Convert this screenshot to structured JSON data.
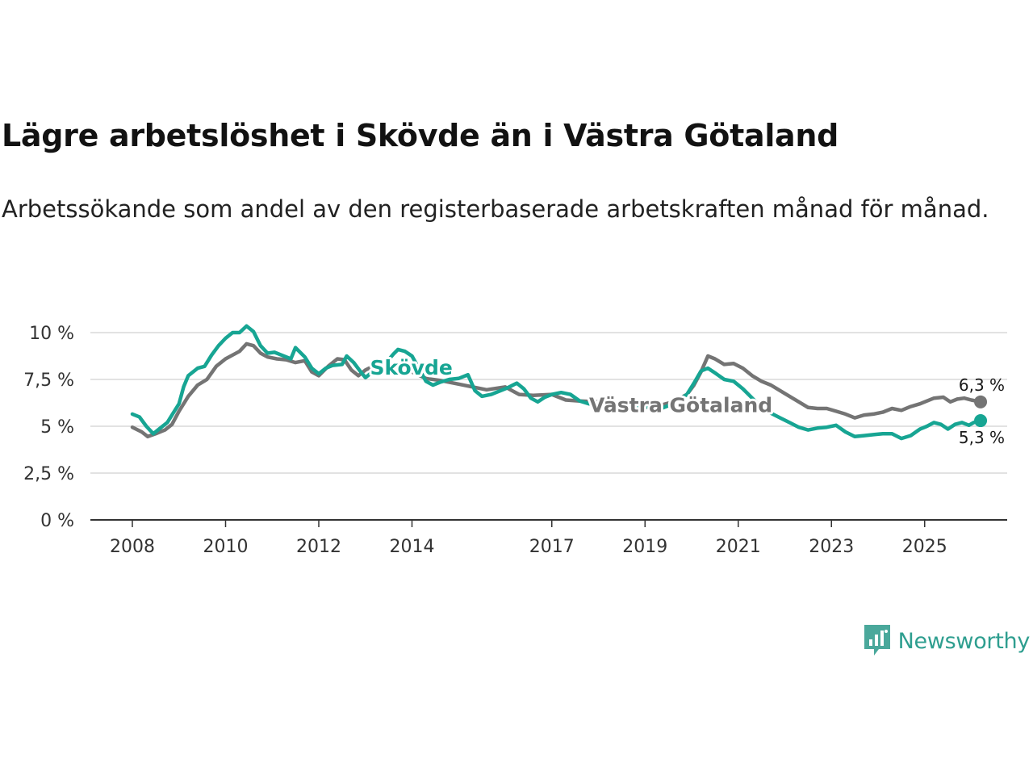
{
  "title": "Lägre arbetslöshet i Skövde än i Västra Götaland",
  "subtitle": "Arbetssökande som andel av den registerbaserade arbetskraften månad för månad.",
  "brand": {
    "name": "Newsworthy",
    "icon": "newsworthy-logo-icon",
    "color": "#2e9e8f"
  },
  "chart_data": {
    "type": "line",
    "title": "Lägre arbetslöshet i Skövde än i Västra Götaland",
    "ylim": [
      0,
      10
    ],
    "xlim": [
      2007.8,
      2026.5
    ],
    "grid": true,
    "y_ticks": [
      {
        "value": 0,
        "label": "0 %"
      },
      {
        "value": 2.5,
        "label": "2,5 %"
      },
      {
        "value": 5,
        "label": "5 %"
      },
      {
        "value": 7.5,
        "label": "7,5 %"
      },
      {
        "value": 10,
        "label": "10 %"
      }
    ],
    "x_ticks": [
      {
        "value": 2008,
        "label": "2008"
      },
      {
        "value": 2010,
        "label": "2010"
      },
      {
        "value": 2012,
        "label": "2012"
      },
      {
        "value": 2014,
        "label": "2014"
      },
      {
        "value": 2017,
        "label": "2017"
      },
      {
        "value": 2019,
        "label": "2019"
      },
      {
        "value": 2021,
        "label": "2021"
      },
      {
        "value": 2023,
        "label": "2023"
      },
      {
        "value": 2025,
        "label": "2025"
      }
    ],
    "series": [
      {
        "name": "Västra Götaland",
        "color": "#747474",
        "end_label": "6,3 %",
        "end_value": 6.3,
        "label_at": [
          2017.8,
          6.15
        ],
        "points": [
          [
            2008,
            4.95
          ],
          [
            2008.2,
            4.7
          ],
          [
            2008.33,
            4.45
          ],
          [
            2008.5,
            4.6
          ],
          [
            2008.7,
            4.8
          ],
          [
            2008.85,
            5.1
          ],
          [
            2009.0,
            5.8
          ],
          [
            2009.2,
            6.6
          ],
          [
            2009.4,
            7.2
          ],
          [
            2009.6,
            7.5
          ],
          [
            2009.8,
            8.2
          ],
          [
            2010.0,
            8.6
          ],
          [
            2010.15,
            8.8
          ],
          [
            2010.3,
            9.0
          ],
          [
            2010.45,
            9.4
          ],
          [
            2010.6,
            9.3
          ],
          [
            2010.75,
            8.9
          ],
          [
            2010.9,
            8.7
          ],
          [
            2011.1,
            8.6
          ],
          [
            2011.3,
            8.55
          ],
          [
            2011.5,
            8.4
          ],
          [
            2011.7,
            8.5
          ],
          [
            2011.85,
            7.9
          ],
          [
            2012.0,
            7.7
          ],
          [
            2012.2,
            8.2
          ],
          [
            2012.4,
            8.6
          ],
          [
            2012.55,
            8.55
          ],
          [
            2012.7,
            8.0
          ],
          [
            2012.85,
            7.7
          ],
          [
            2013.0,
            8.0
          ],
          [
            2013.2,
            8.25
          ],
          [
            2013.4,
            8.45
          ],
          [
            2013.6,
            8.2
          ],
          [
            2014.0,
            7.9
          ],
          [
            2014.3,
            7.55
          ],
          [
            2014.6,
            7.45
          ],
          [
            2015.0,
            7.25
          ],
          [
            2015.3,
            7.1
          ],
          [
            2015.6,
            6.95
          ],
          [
            2016.0,
            7.1
          ],
          [
            2016.3,
            6.7
          ],
          [
            2016.6,
            6.65
          ],
          [
            2017.0,
            6.7
          ],
          [
            2017.3,
            6.4
          ],
          [
            2017.6,
            6.35
          ],
          [
            2018.0,
            6.3
          ],
          [
            2018.3,
            6.2
          ],
          [
            2018.6,
            6.1
          ],
          [
            2019.0,
            6.0
          ],
          [
            2019.3,
            6.1
          ],
          [
            2019.6,
            6.3
          ],
          [
            2019.9,
            6.7
          ],
          [
            2020.05,
            7.2
          ],
          [
            2020.2,
            7.9
          ],
          [
            2020.35,
            8.75
          ],
          [
            2020.5,
            8.6
          ],
          [
            2020.7,
            8.3
          ],
          [
            2020.9,
            8.35
          ],
          [
            2021.1,
            8.1
          ],
          [
            2021.3,
            7.7
          ],
          [
            2021.5,
            7.4
          ],
          [
            2021.7,
            7.2
          ],
          [
            2021.9,
            6.9
          ],
          [
            2022.1,
            6.6
          ],
          [
            2022.3,
            6.3
          ],
          [
            2022.5,
            6.0
          ],
          [
            2022.7,
            5.95
          ],
          [
            2022.9,
            5.95
          ],
          [
            2023.1,
            5.8
          ],
          [
            2023.3,
            5.65
          ],
          [
            2023.5,
            5.45
          ],
          [
            2023.7,
            5.6
          ],
          [
            2023.9,
            5.65
          ],
          [
            2024.1,
            5.75
          ],
          [
            2024.3,
            5.95
          ],
          [
            2024.5,
            5.85
          ],
          [
            2024.7,
            6.05
          ],
          [
            2024.9,
            6.2
          ],
          [
            2025.0,
            6.3
          ],
          [
            2025.2,
            6.5
          ],
          [
            2025.4,
            6.55
          ],
          [
            2025.55,
            6.3
          ],
          [
            2025.7,
            6.45
          ],
          [
            2025.85,
            6.5
          ],
          [
            2026.0,
            6.4
          ],
          [
            2026.2,
            6.3
          ]
        ]
      },
      {
        "name": "Skövde",
        "color": "#17a593",
        "end_label": "5,3 %",
        "end_value": 5.3,
        "label_at": [
          2013.1,
          8.15
        ],
        "points": [
          [
            2008,
            5.65
          ],
          [
            2008.15,
            5.5
          ],
          [
            2008.3,
            5.0
          ],
          [
            2008.45,
            4.6
          ],
          [
            2008.6,
            4.9
          ],
          [
            2008.75,
            5.2
          ],
          [
            2008.85,
            5.6
          ],
          [
            2009.0,
            6.2
          ],
          [
            2009.1,
            7.1
          ],
          [
            2009.2,
            7.7
          ],
          [
            2009.4,
            8.1
          ],
          [
            2009.55,
            8.2
          ],
          [
            2009.7,
            8.8
          ],
          [
            2009.85,
            9.3
          ],
          [
            2010.0,
            9.7
          ],
          [
            2010.15,
            10.0
          ],
          [
            2010.3,
            10.0
          ],
          [
            2010.45,
            10.35
          ],
          [
            2010.6,
            10.05
          ],
          [
            2010.75,
            9.3
          ],
          [
            2010.9,
            8.9
          ],
          [
            2011.05,
            8.95
          ],
          [
            2011.2,
            8.8
          ],
          [
            2011.4,
            8.6
          ],
          [
            2011.5,
            9.2
          ],
          [
            2011.7,
            8.7
          ],
          [
            2011.85,
            8.1
          ],
          [
            2012.0,
            7.8
          ],
          [
            2012.15,
            8.1
          ],
          [
            2012.3,
            8.25
          ],
          [
            2012.5,
            8.3
          ],
          [
            2012.6,
            8.75
          ],
          [
            2012.75,
            8.4
          ],
          [
            2012.9,
            7.9
          ],
          [
            2013.0,
            7.6
          ],
          [
            2013.2,
            8.0
          ],
          [
            2013.35,
            8.35
          ],
          [
            2013.5,
            8.55
          ],
          [
            2013.6,
            8.85
          ],
          [
            2013.7,
            9.1
          ],
          [
            2013.85,
            9.0
          ],
          [
            2014.0,
            8.75
          ],
          [
            2014.3,
            7.4
          ],
          [
            2014.45,
            7.2
          ],
          [
            2014.6,
            7.35
          ],
          [
            2014.8,
            7.5
          ],
          [
            2015.0,
            7.55
          ],
          [
            2015.2,
            7.75
          ],
          [
            2015.35,
            6.9
          ],
          [
            2015.5,
            6.6
          ],
          [
            2015.7,
            6.7
          ],
          [
            2015.9,
            6.9
          ],
          [
            2016.05,
            7.05
          ],
          [
            2016.25,
            7.3
          ],
          [
            2016.4,
            7.0
          ],
          [
            2016.55,
            6.5
          ],
          [
            2016.7,
            6.3
          ],
          [
            2016.85,
            6.55
          ],
          [
            2017.0,
            6.7
          ],
          [
            2017.2,
            6.8
          ],
          [
            2017.4,
            6.7
          ],
          [
            2017.6,
            6.35
          ],
          [
            2017.8,
            6.2
          ],
          [
            2018.0,
            6.2
          ],
          [
            2018.3,
            6.1
          ],
          [
            2018.6,
            6.05
          ],
          [
            2018.9,
            6.1
          ],
          [
            2019.1,
            6.0
          ],
          [
            2019.3,
            5.9
          ],
          [
            2019.5,
            6.1
          ],
          [
            2019.7,
            6.35
          ],
          [
            2019.9,
            6.7
          ],
          [
            2020.05,
            7.3
          ],
          [
            2020.2,
            7.95
          ],
          [
            2020.35,
            8.1
          ],
          [
            2020.5,
            7.85
          ],
          [
            2020.7,
            7.5
          ],
          [
            2020.9,
            7.4
          ],
          [
            2021.1,
            7.0
          ],
          [
            2021.3,
            6.5
          ],
          [
            2021.5,
            6.0
          ],
          [
            2021.7,
            5.7
          ],
          [
            2021.9,
            5.45
          ],
          [
            2022.1,
            5.2
          ],
          [
            2022.3,
            4.95
          ],
          [
            2022.5,
            4.8
          ],
          [
            2022.7,
            4.9
          ],
          [
            2022.9,
            4.95
          ],
          [
            2023.1,
            5.05
          ],
          [
            2023.3,
            4.7
          ],
          [
            2023.5,
            4.45
          ],
          [
            2023.7,
            4.5
          ],
          [
            2023.9,
            4.55
          ],
          [
            2024.1,
            4.6
          ],
          [
            2024.3,
            4.6
          ],
          [
            2024.5,
            4.35
          ],
          [
            2024.7,
            4.5
          ],
          [
            2024.9,
            4.85
          ],
          [
            2025.05,
            5.0
          ],
          [
            2025.2,
            5.2
          ],
          [
            2025.35,
            5.1
          ],
          [
            2025.5,
            4.85
          ],
          [
            2025.65,
            5.1
          ],
          [
            2025.8,
            5.2
          ],
          [
            2025.95,
            5.05
          ],
          [
            2026.05,
            5.2
          ],
          [
            2026.2,
            5.3
          ]
        ]
      }
    ]
  }
}
